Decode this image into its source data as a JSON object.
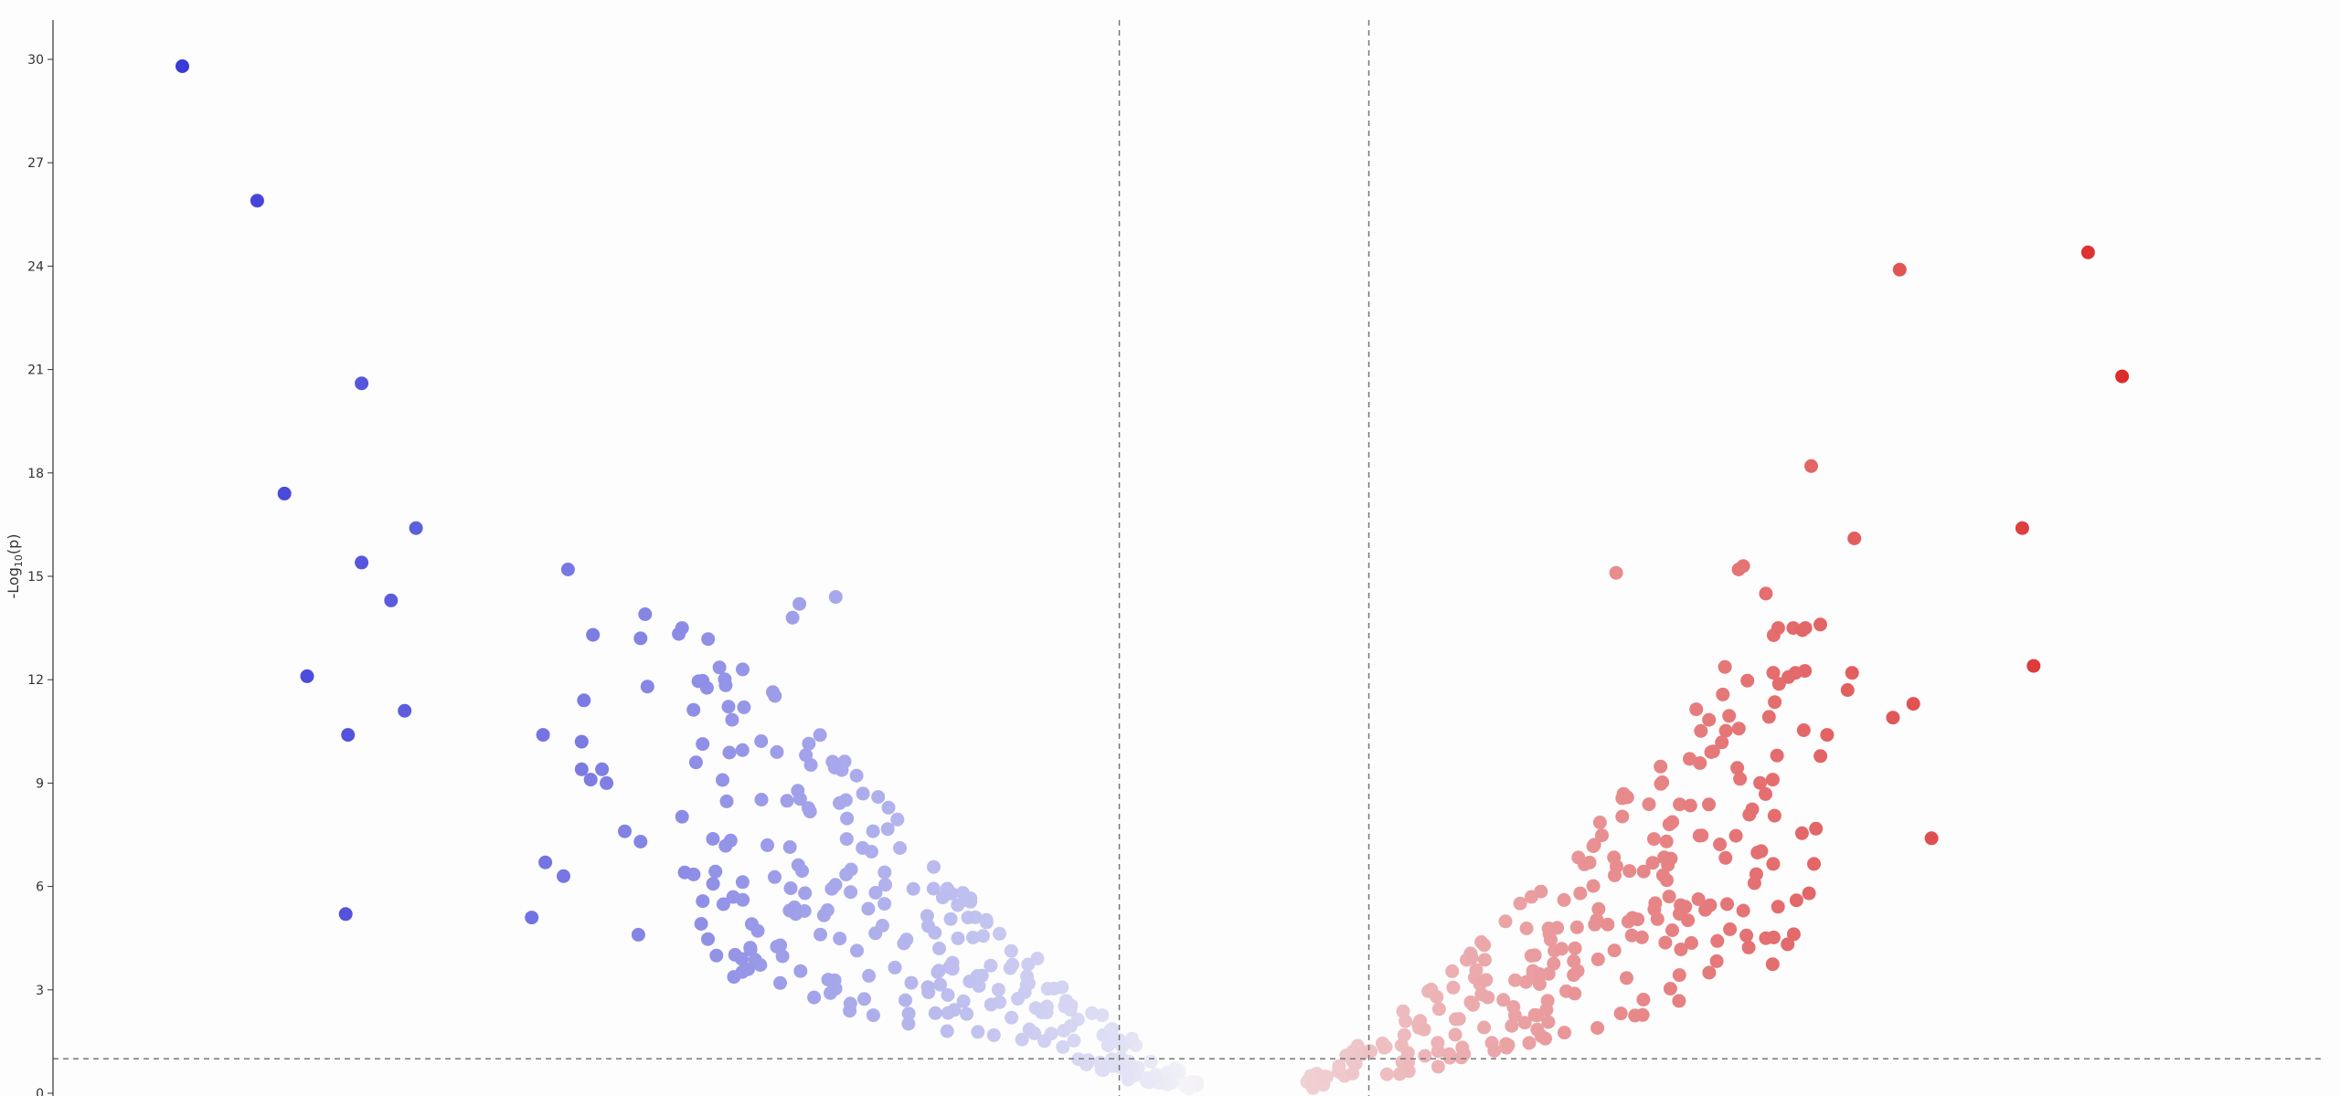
{
  "chart_data": {
    "type": "scatter",
    "title": "",
    "xlabel": "",
    "ylabel_main": "-Log",
    "ylabel_sub": "10",
    "ylabel_tail": "(p)",
    "ylim": [
      0,
      31
    ],
    "yticks": [
      0,
      3,
      6,
      9,
      12,
      15,
      18,
      21,
      24,
      27,
      30
    ],
    "xlim": [
      -5.0,
      5.0
    ],
    "x_thresholds": [
      -0.3,
      0.8
    ],
    "y_threshold": 1.0,
    "grid": false,
    "legend": "none",
    "colors": {
      "down": "#3a3ad8",
      "up": "#dc2c2c",
      "neutral": "#f4f4f8",
      "threshold": "#777777"
    },
    "highlighted_points": [
      {
        "x": -4.43,
        "y": 29.8
      },
      {
        "x": -4.1,
        "y": 25.9
      },
      {
        "x": -3.64,
        "y": 20.6
      },
      {
        "x": -3.98,
        "y": 17.4
      },
      {
        "x": -3.4,
        "y": 16.4
      },
      {
        "x": -3.64,
        "y": 15.4
      },
      {
        "x": -3.51,
        "y": 14.3
      },
      {
        "x": -3.88,
        "y": 12.1
      },
      {
        "x": -3.45,
        "y": 11.1
      },
      {
        "x": -3.7,
        "y": 10.4
      },
      {
        "x": -3.71,
        "y": 5.2
      },
      {
        "x": -2.73,
        "y": 15.2
      },
      {
        "x": -2.62,
        "y": 13.3
      },
      {
        "x": -2.39,
        "y": 13.9
      },
      {
        "x": -2.41,
        "y": 13.2
      },
      {
        "x": -2.38,
        "y": 11.8
      },
      {
        "x": -2.66,
        "y": 11.4
      },
      {
        "x": -2.84,
        "y": 10.4
      },
      {
        "x": -2.67,
        "y": 10.2
      },
      {
        "x": -2.67,
        "y": 9.4
      },
      {
        "x": -2.63,
        "y": 9.1
      },
      {
        "x": -2.58,
        "y": 9.4
      },
      {
        "x": -2.56,
        "y": 9.0
      },
      {
        "x": -2.48,
        "y": 7.6
      },
      {
        "x": -2.41,
        "y": 7.3
      },
      {
        "x": -2.83,
        "y": 6.7
      },
      {
        "x": -2.75,
        "y": 6.3
      },
      {
        "x": -2.89,
        "y": 5.1
      },
      {
        "x": -2.42,
        "y": 4.6
      },
      {
        "x": -1.55,
        "y": 14.4
      },
      {
        "x": -1.71,
        "y": 14.2
      },
      {
        "x": -1.74,
        "y": 13.8
      },
      {
        "x": -1.96,
        "y": 12.3
      },
      {
        "x": 1.89,
        "y": 15.1
      },
      {
        "x": 2.45,
        "y": 15.3
      },
      {
        "x": 2.43,
        "y": 15.2
      },
      {
        "x": 3.14,
        "y": 23.9
      },
      {
        "x": 3.97,
        "y": 24.4
      },
      {
        "x": 4.12,
        "y": 20.8
      },
      {
        "x": 2.75,
        "y": 18.2
      },
      {
        "x": 2.94,
        "y": 16.1
      },
      {
        "x": 3.68,
        "y": 16.4
      },
      {
        "x": 3.73,
        "y": 12.4
      },
      {
        "x": 2.55,
        "y": 14.5
      },
      {
        "x": 3.28,
        "y": 7.4
      },
      {
        "x": 2.79,
        "y": 13.6
      },
      {
        "x": 2.68,
        "y": 12.2
      },
      {
        "x": 2.93,
        "y": 12.2
      },
      {
        "x": 3.11,
        "y": 10.9
      },
      {
        "x": 3.2,
        "y": 11.3
      },
      {
        "x": 2.91,
        "y": 11.7
      },
      {
        "x": 2.82,
        "y": 10.4
      },
      {
        "x": 2.58,
        "y": 9.1
      },
      {
        "x": 2.3,
        "y": 3.5
      },
      {
        "x": 2.74,
        "y": 5.8
      },
      {
        "x": 2.55,
        "y": 4.5
      },
      {
        "x": 2.45,
        "y": 5.3
      }
    ]
  }
}
